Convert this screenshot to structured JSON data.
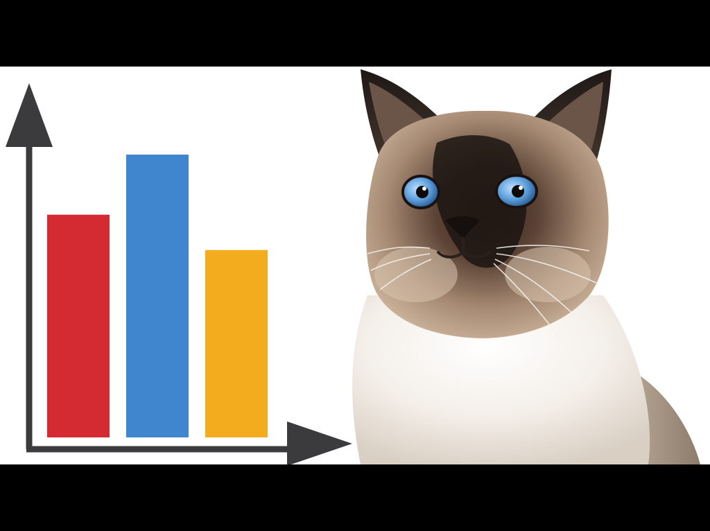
{
  "chart_data": {
    "type": "bar",
    "categories": [
      "",
      "",
      ""
    ],
    "values": [
      6.3,
      8.0,
      5.3
    ],
    "ylim": [
      0,
      10
    ],
    "grid": false,
    "title": "",
    "xlabel": "",
    "ylabel": ""
  },
  "colors": {
    "bars": [
      "#d42a31",
      "#3f86cf",
      "#f3ac1d"
    ],
    "axis": "#3b3b3d",
    "background": "#ffffff",
    "letterbox": "#000000"
  },
  "illustration": {
    "subject_icon": "siamese-cat-icon"
  }
}
